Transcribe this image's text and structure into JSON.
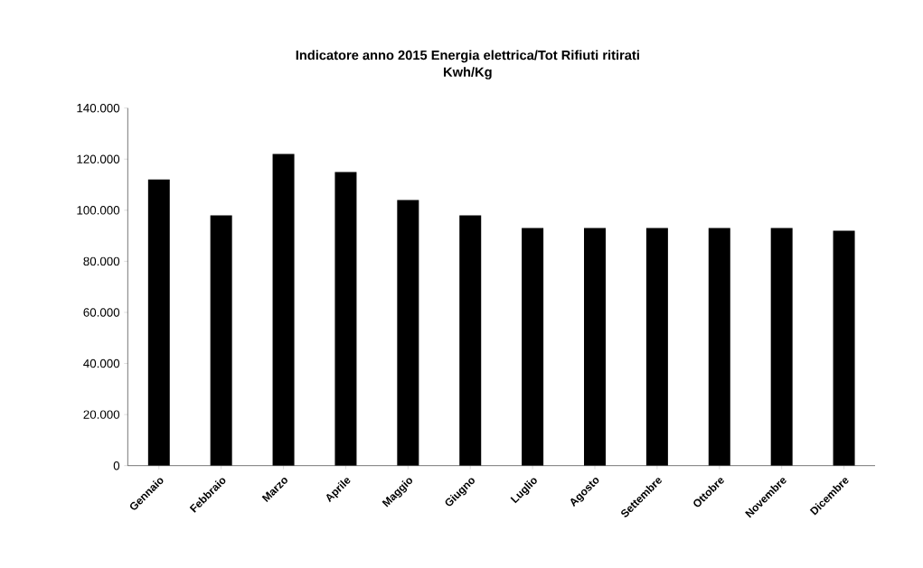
{
  "chart_data": {
    "type": "bar",
    "title": "Indicatore anno 2015 Energia elettrica/Tot Rifiuti ritirati\nKwh/Kg",
    "categories": [
      "Gennaio",
      "Febbraio",
      "Marzo",
      "Aprile",
      "Maggio",
      "Giugno",
      "Luglio",
      "Agosto",
      "Settembre",
      "Ottobre",
      "Novembre",
      "Dicembre"
    ],
    "values": [
      112000,
      98000,
      122000,
      115000,
      104000,
      98000,
      93000,
      93000,
      93000,
      93000,
      93000,
      92000
    ],
    "color": "#000000",
    "ylim": [
      0,
      140000
    ],
    "yticks": [
      {
        "value": 0,
        "label": "0"
      },
      {
        "value": 20000,
        "label": "20.000"
      },
      {
        "value": 40000,
        "label": "40.000"
      },
      {
        "value": 60000,
        "label": "60.000"
      },
      {
        "value": 80000,
        "label": "80.000"
      },
      {
        "value": 100000,
        "label": "100.000"
      },
      {
        "value": 120000,
        "label": "120.000"
      },
      {
        "value": 140000,
        "label": "140.000"
      }
    ],
    "grid": false,
    "legend": false
  }
}
